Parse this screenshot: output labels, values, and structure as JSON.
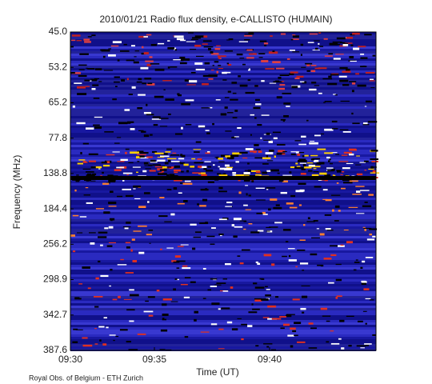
{
  "chart_data": {
    "type": "spectrogram",
    "title": "2010/01/21  Radio flux density, e-CALLISTO (HUMAIN)",
    "x_label": "Time (UT)",
    "y_label": "Frequency (MHz)",
    "xticks": [
      "09:30",
      "09:35",
      "09:40"
    ],
    "yticks": [
      {
        "value": 45,
        "label": "45.0"
      },
      {
        "value": 53.2,
        "label": "53.2"
      },
      {
        "value": 65.2,
        "label": "65.2"
      },
      {
        "value": 77.8,
        "label": "77.8"
      },
      {
        "value": 138.8,
        "label": "138.8"
      },
      {
        "value": 184.4,
        "label": "184.4"
      },
      {
        "value": 256.2,
        "label": "256.2"
      },
      {
        "value": 298.9,
        "label": "298.9"
      },
      {
        "value": 342.7,
        "label": "342.7"
      },
      {
        "value": 387.6,
        "label": "387.6"
      }
    ],
    "footer": "Royal Obs. of Belgium - ETH Zurich"
  }
}
